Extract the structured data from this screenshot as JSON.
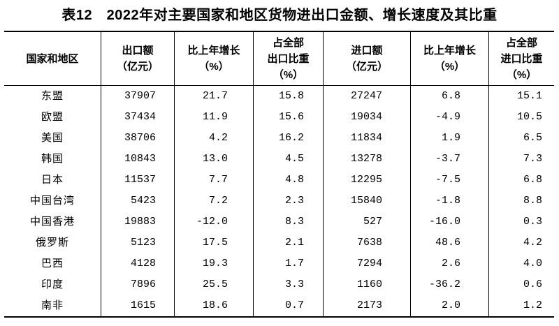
{
  "title": "表12　2022年对主要国家和地区货物进出口金额、增长速度及其比重",
  "table": {
    "columns": [
      {
        "id": "region",
        "lines": [
          "国家和地区"
        ]
      },
      {
        "id": "export_value",
        "lines": [
          "出口额",
          "（亿元）"
        ]
      },
      {
        "id": "export_growth",
        "lines": [
          "比上年增长",
          "（%）"
        ]
      },
      {
        "id": "export_share",
        "lines": [
          "占全部",
          "出口比重",
          "（%）"
        ]
      },
      {
        "id": "import_value",
        "lines": [
          "进口额",
          "（亿元）"
        ]
      },
      {
        "id": "import_growth",
        "lines": [
          "比上年增长",
          "（%）"
        ]
      },
      {
        "id": "import_share",
        "lines": [
          "占全部",
          "进口比重",
          "（%）"
        ]
      }
    ],
    "rows": [
      {
        "region": "东盟",
        "export_value": "37907",
        "export_growth": "21.7",
        "export_share": "15.8",
        "import_value": "27247",
        "import_growth": "6.8",
        "import_share": "15.1"
      },
      {
        "region": "欧盟",
        "export_value": "37434",
        "export_growth": "11.9",
        "export_share": "15.6",
        "import_value": "19034",
        "import_growth": "-4.9",
        "import_share": "10.5"
      },
      {
        "region": "美国",
        "export_value": "38706",
        "export_growth": "4.2",
        "export_share": "16.2",
        "import_value": "11834",
        "import_growth": "1.9",
        "import_share": "6.5"
      },
      {
        "region": "韩国",
        "export_value": "10843",
        "export_growth": "13.0",
        "export_share": "4.5",
        "import_value": "13278",
        "import_growth": "-3.7",
        "import_share": "7.3"
      },
      {
        "region": "日本",
        "export_value": "11537",
        "export_growth": "7.7",
        "export_share": "4.8",
        "import_value": "12295",
        "import_growth": "-7.5",
        "import_share": "6.8"
      },
      {
        "region": "中国台湾",
        "export_value": "5423",
        "export_growth": "7.2",
        "export_share": "2.3",
        "import_value": "15840",
        "import_growth": "-1.8",
        "import_share": "8.8"
      },
      {
        "region": "中国香港",
        "export_value": "19883",
        "export_growth": "-12.0",
        "export_share": "8.3",
        "import_value": "527",
        "import_growth": "-16.0",
        "import_share": "0.3"
      },
      {
        "region": "俄罗斯",
        "export_value": "5123",
        "export_growth": "17.5",
        "export_share": "2.1",
        "import_value": "7638",
        "import_growth": "48.6",
        "import_share": "4.2"
      },
      {
        "region": "巴西",
        "export_value": "4128",
        "export_growth": "19.3",
        "export_share": "1.7",
        "import_value": "7294",
        "import_growth": "2.6",
        "import_share": "4.0"
      },
      {
        "region": "印度",
        "export_value": "7896",
        "export_growth": "25.5",
        "export_share": "3.3",
        "import_value": "1160",
        "import_growth": "-36.2",
        "import_share": "0.6"
      },
      {
        "region": "南非",
        "export_value": "1615",
        "export_growth": "18.6",
        "export_share": "0.7",
        "import_value": "2173",
        "import_growth": "2.0",
        "import_share": "1.2"
      }
    ]
  }
}
